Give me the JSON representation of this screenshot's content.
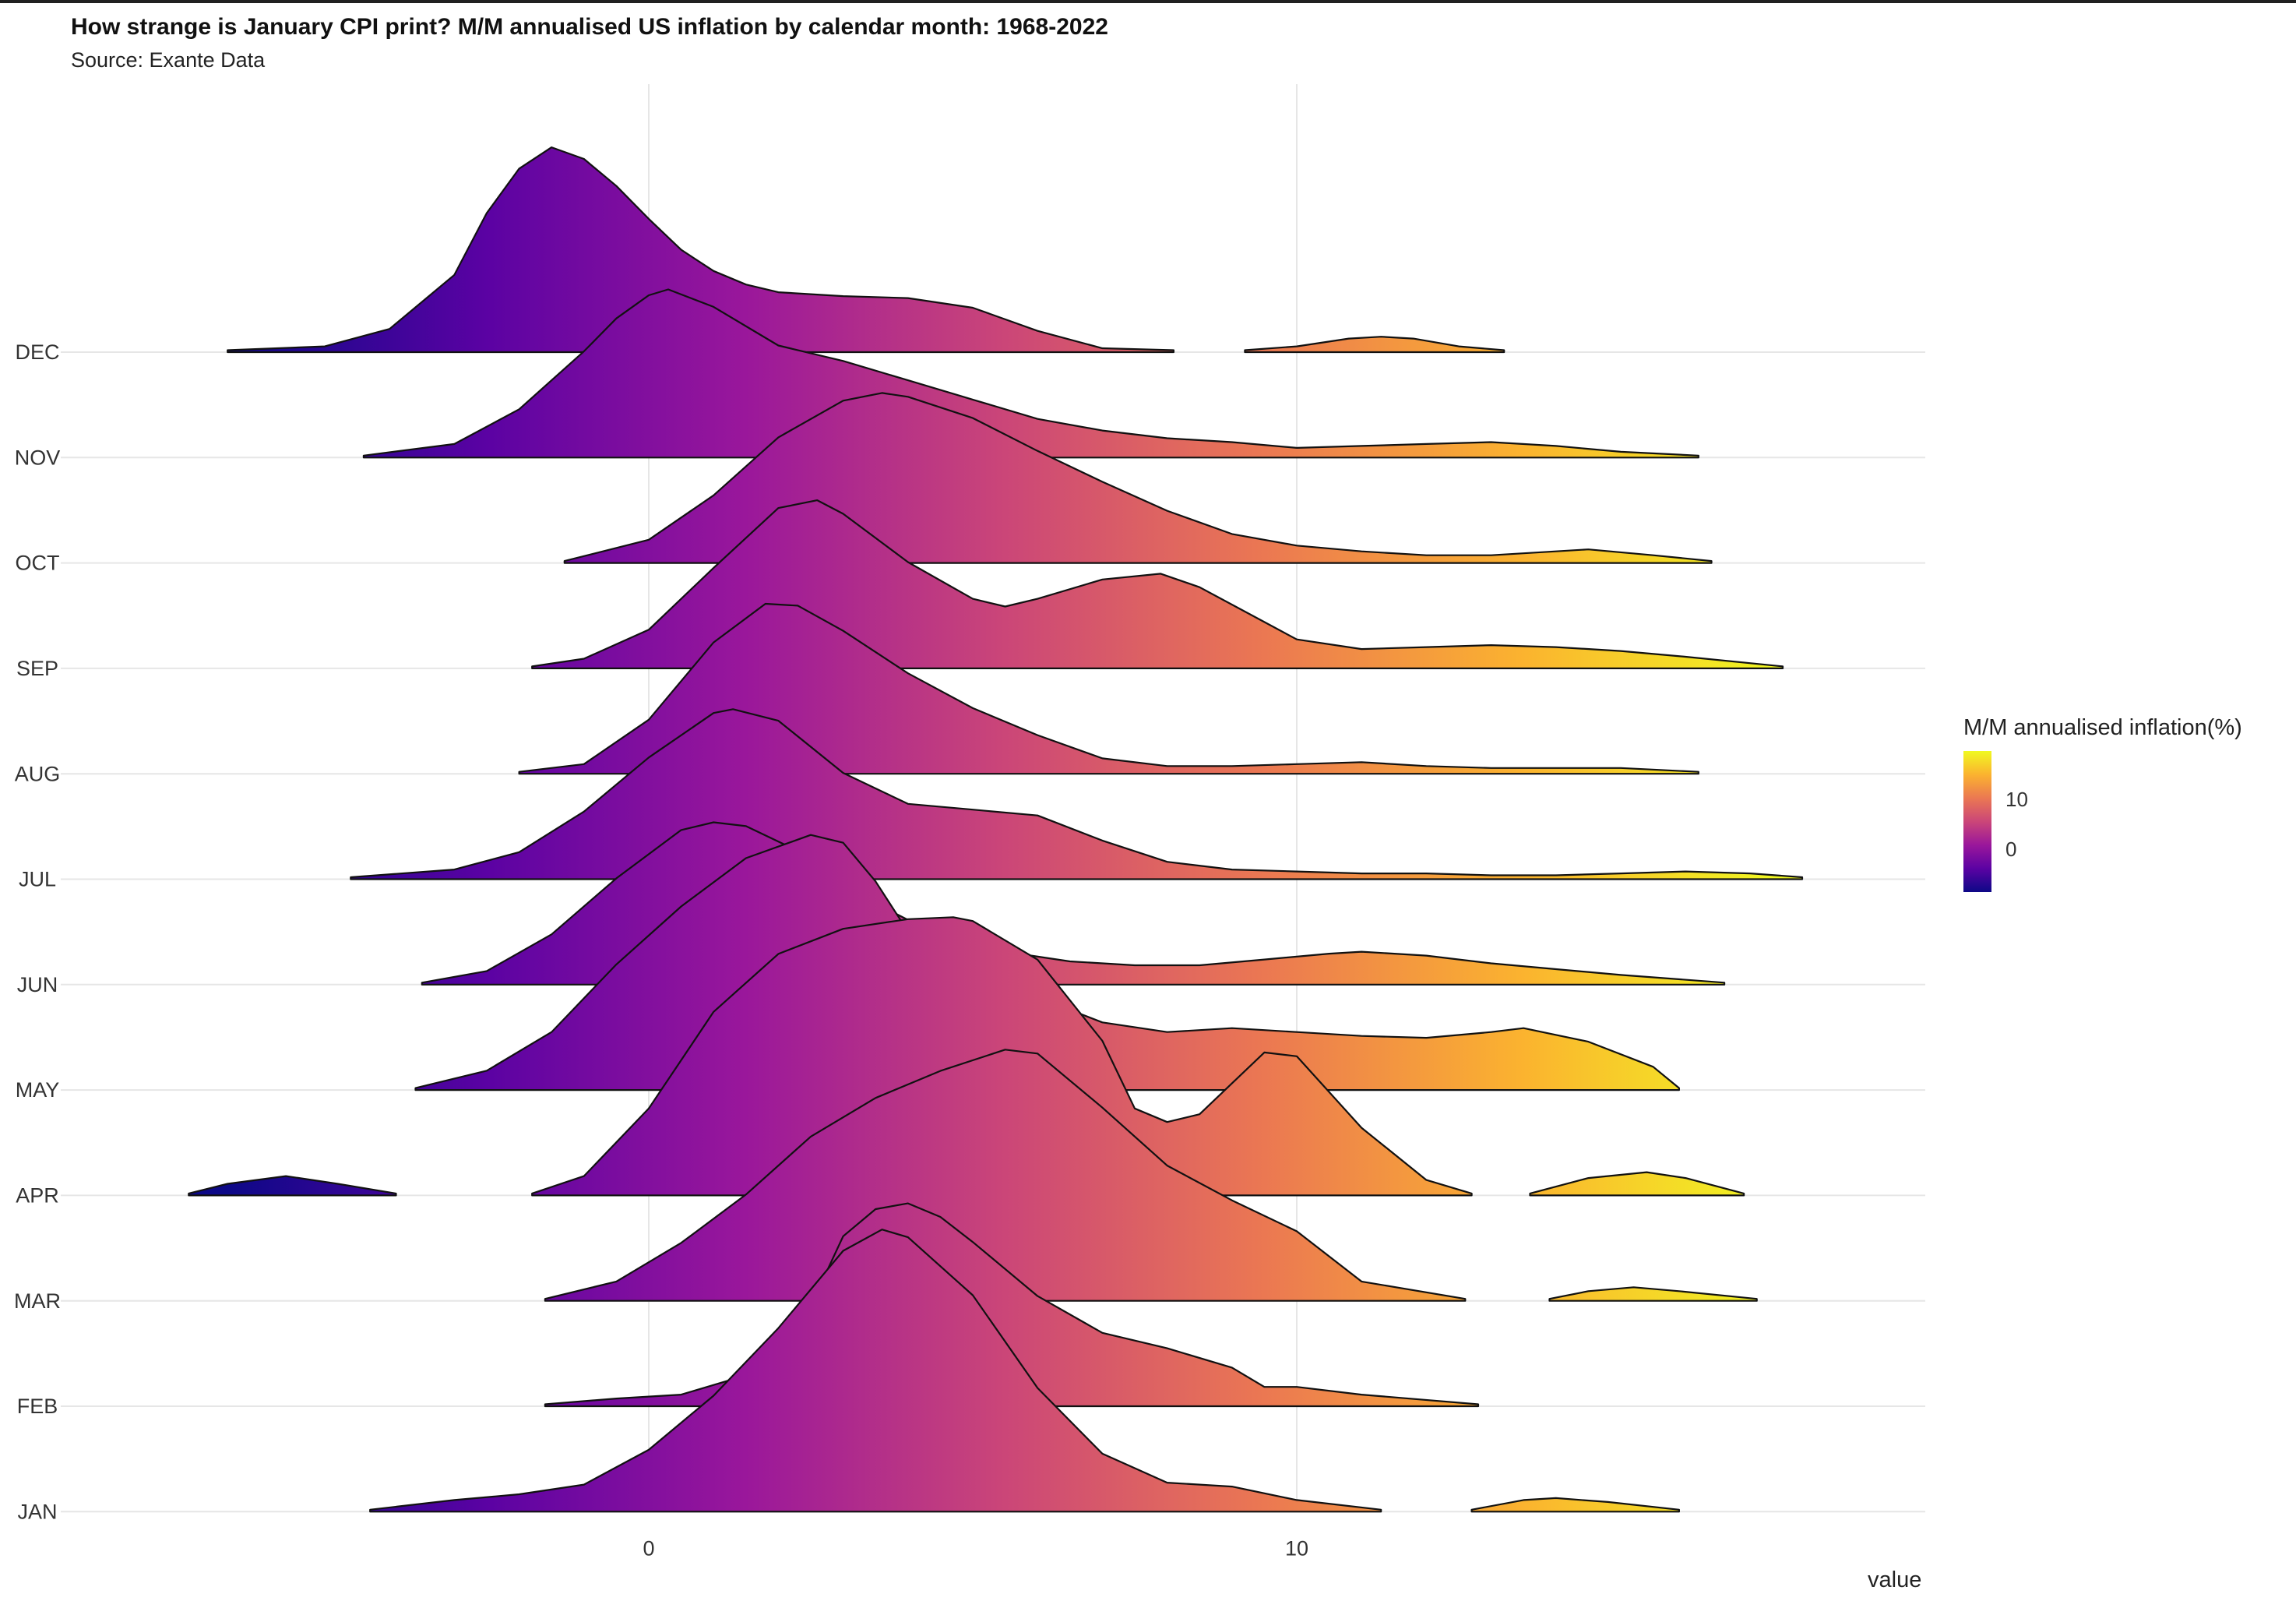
{
  "chart_data": {
    "type": "ridgeline",
    "title": "How strange is January CPI print? M/M annualised US inflation by calendar month: 1968-2022",
    "subtitle": "Source: Exante Data",
    "xlabel": "value",
    "ylabel": "",
    "xlim": [
      -9.5,
      19.7
    ],
    "x_ticks": [
      0,
      10
    ],
    "x_tick_labels": [
      "0",
      "10"
    ],
    "grid": "on",
    "legend": {
      "title": "M/M annualised inflation(%)",
      "placement": "right",
      "ticks": [
        0,
        10
      ],
      "tick_labels": [
        "0",
        "10"
      ],
      "colormap": [
        "#0d0887",
        "#5b02a3",
        "#9a179b",
        "#cb4678",
        "#eb7852",
        "#fbb32f",
        "#f0f921"
      ],
      "range": [
        -6.5,
        17.5
      ]
    },
    "categories": [
      "DEC",
      "NOV",
      "OCT",
      "SEP",
      "AUG",
      "JUL",
      "JUN",
      "MAY",
      "APR",
      "MAR",
      "FEB",
      "JAN"
    ],
    "series": [
      {
        "name": "DEC",
        "points": [
          [
            -6.5,
            0.01
          ],
          [
            -5,
            0.03
          ],
          [
            -4,
            0.12
          ],
          [
            -3,
            0.4
          ],
          [
            -2.5,
            0.72
          ],
          [
            -2,
            0.95
          ],
          [
            -1.5,
            1.06
          ],
          [
            -1,
            1.0
          ],
          [
            -0.5,
            0.86
          ],
          [
            0,
            0.69
          ],
          [
            0.5,
            0.53
          ],
          [
            1,
            0.42
          ],
          [
            1.5,
            0.35
          ],
          [
            2,
            0.31
          ],
          [
            3,
            0.29
          ],
          [
            4,
            0.28
          ],
          [
            5,
            0.23
          ],
          [
            6,
            0.11
          ],
          [
            7,
            0.02
          ],
          [
            8.1,
            0.01
          ]
        ],
        "extra": [
          [
            [
              9.2,
              0.01
            ],
            [
              10,
              0.03
            ],
            [
              10.8,
              0.07
            ],
            [
              11.3,
              0.08
            ],
            [
              11.8,
              0.07
            ],
            [
              12.5,
              0.03
            ],
            [
              13.2,
              0.01
            ]
          ]
        ]
      },
      {
        "name": "NOV",
        "points": [
          [
            -4.4,
            0.01
          ],
          [
            -3,
            0.07
          ],
          [
            -2,
            0.25
          ],
          [
            -1,
            0.55
          ],
          [
            -0.5,
            0.72
          ],
          [
            0,
            0.84
          ],
          [
            0.3,
            0.87
          ],
          [
            1,
            0.78
          ],
          [
            2,
            0.58
          ],
          [
            3,
            0.5
          ],
          [
            4,
            0.4
          ],
          [
            5,
            0.3
          ],
          [
            6,
            0.2
          ],
          [
            7,
            0.14
          ],
          [
            8,
            0.1
          ],
          [
            9,
            0.08
          ],
          [
            10,
            0.05
          ],
          [
            11,
            0.06
          ],
          [
            12,
            0.07
          ],
          [
            13,
            0.08
          ],
          [
            14,
            0.06
          ],
          [
            15,
            0.03
          ],
          [
            16.2,
            0.01
          ]
        ]
      },
      {
        "name": "OCT",
        "points": [
          [
            -1.3,
            0.01
          ],
          [
            0,
            0.12
          ],
          [
            1,
            0.35
          ],
          [
            2,
            0.65
          ],
          [
            3,
            0.84
          ],
          [
            3.6,
            0.88
          ],
          [
            4,
            0.86
          ],
          [
            5,
            0.75
          ],
          [
            6,
            0.58
          ],
          [
            7,
            0.42
          ],
          [
            8,
            0.27
          ],
          [
            9,
            0.15
          ],
          [
            10,
            0.09
          ],
          [
            11,
            0.06
          ],
          [
            12,
            0.04
          ],
          [
            13,
            0.04
          ],
          [
            14,
            0.06
          ],
          [
            14.5,
            0.07
          ],
          [
            15.5,
            0.04
          ],
          [
            16.4,
            0.01
          ]
        ]
      },
      {
        "name": "SEP",
        "points": [
          [
            -1.8,
            0.01
          ],
          [
            -1,
            0.05
          ],
          [
            0,
            0.2
          ],
          [
            1,
            0.52
          ],
          [
            2,
            0.83
          ],
          [
            2.6,
            0.87
          ],
          [
            3,
            0.8
          ],
          [
            4,
            0.55
          ],
          [
            5,
            0.36
          ],
          [
            5.5,
            0.32
          ],
          [
            6,
            0.36
          ],
          [
            7,
            0.46
          ],
          [
            7.9,
            0.49
          ],
          [
            8.5,
            0.42
          ],
          [
            9.5,
            0.24
          ],
          [
            10,
            0.15
          ],
          [
            11,
            0.1
          ],
          [
            12,
            0.11
          ],
          [
            13,
            0.12
          ],
          [
            14,
            0.11
          ],
          [
            15,
            0.09
          ],
          [
            16,
            0.06
          ],
          [
            17.5,
            0.01
          ]
        ]
      },
      {
        "name": "AUG",
        "points": [
          [
            -2,
            0.01
          ],
          [
            -1,
            0.05
          ],
          [
            0,
            0.28
          ],
          [
            1,
            0.68
          ],
          [
            1.8,
            0.88
          ],
          [
            2.3,
            0.87
          ],
          [
            3,
            0.74
          ],
          [
            4,
            0.52
          ],
          [
            5,
            0.34
          ],
          [
            6,
            0.2
          ],
          [
            7,
            0.08
          ],
          [
            8,
            0.04
          ],
          [
            9,
            0.04
          ],
          [
            10,
            0.05
          ],
          [
            11,
            0.06
          ],
          [
            12,
            0.04
          ],
          [
            13,
            0.03
          ],
          [
            14,
            0.03
          ],
          [
            15,
            0.03
          ],
          [
            16.2,
            0.01
          ]
        ]
      },
      {
        "name": "JUL",
        "points": [
          [
            -4.6,
            0.01
          ],
          [
            -3,
            0.05
          ],
          [
            -2,
            0.14
          ],
          [
            -1,
            0.35
          ],
          [
            0,
            0.63
          ],
          [
            1,
            0.86
          ],
          [
            1.3,
            0.88
          ],
          [
            2,
            0.82
          ],
          [
            3,
            0.55
          ],
          [
            4,
            0.39
          ],
          [
            5,
            0.36
          ],
          [
            6,
            0.33
          ],
          [
            7,
            0.2
          ],
          [
            8,
            0.09
          ],
          [
            9,
            0.05
          ],
          [
            10,
            0.04
          ],
          [
            11,
            0.03
          ],
          [
            12,
            0.03
          ],
          [
            13,
            0.02
          ],
          [
            14,
            0.02
          ],
          [
            15,
            0.03
          ],
          [
            16,
            0.04
          ],
          [
            17,
            0.03
          ],
          [
            17.8,
            0.01
          ]
        ]
      },
      {
        "name": "JUN",
        "points": [
          [
            -3.5,
            0.01
          ],
          [
            -2.5,
            0.07
          ],
          [
            -1.5,
            0.26
          ],
          [
            -0.5,
            0.55
          ],
          [
            0.5,
            0.8
          ],
          [
            1,
            0.84
          ],
          [
            1.5,
            0.82
          ],
          [
            2.5,
            0.66
          ],
          [
            3.5,
            0.42
          ],
          [
            4.5,
            0.25
          ],
          [
            5.5,
            0.17
          ],
          [
            6.5,
            0.12
          ],
          [
            7.5,
            0.1
          ],
          [
            8.5,
            0.1
          ],
          [
            9.5,
            0.13
          ],
          [
            10.5,
            0.16
          ],
          [
            11,
            0.17
          ],
          [
            12,
            0.15
          ],
          [
            13,
            0.11
          ],
          [
            14,
            0.08
          ],
          [
            15,
            0.05
          ],
          [
            16.6,
            0.01
          ]
        ]
      },
      {
        "name": "MAY",
        "points": [
          [
            -3.6,
            0.01
          ],
          [
            -2.5,
            0.1
          ],
          [
            -1.5,
            0.3
          ],
          [
            -0.5,
            0.65
          ],
          [
            0.5,
            0.95
          ],
          [
            1.5,
            1.2
          ],
          [
            2.5,
            1.32
          ],
          [
            3,
            1.28
          ],
          [
            3.5,
            1.08
          ],
          [
            4,
            0.82
          ],
          [
            4.5,
            0.67
          ],
          [
            5,
            0.62
          ],
          [
            6,
            0.48
          ],
          [
            7,
            0.35
          ],
          [
            8,
            0.3
          ],
          [
            9,
            0.32
          ],
          [
            10,
            0.3
          ],
          [
            11,
            0.28
          ],
          [
            12,
            0.27
          ],
          [
            13,
            0.3
          ],
          [
            13.5,
            0.32
          ],
          [
            14.5,
            0.25
          ],
          [
            15.5,
            0.12
          ],
          [
            15.9,
            0.01
          ]
        ]
      },
      {
        "name": "APR",
        "points": [
          [
            -1.8,
            0.01
          ],
          [
            -1,
            0.1
          ],
          [
            0,
            0.45
          ],
          [
            1,
            0.95
          ],
          [
            2,
            1.25
          ],
          [
            3,
            1.38
          ],
          [
            4,
            1.43
          ],
          [
            4.7,
            1.44
          ],
          [
            5,
            1.42
          ],
          [
            6,
            1.22
          ],
          [
            7,
            0.8
          ],
          [
            7.5,
            0.45
          ],
          [
            8,
            0.38
          ],
          [
            8.5,
            0.42
          ],
          [
            9.5,
            0.74
          ],
          [
            10,
            0.72
          ],
          [
            11,
            0.35
          ],
          [
            12,
            0.08
          ],
          [
            12.7,
            0.01
          ]
        ],
        "extra": [
          [
            [
              -7.1,
              0.01
            ],
            [
              -6.5,
              0.06
            ],
            [
              -5.6,
              0.1
            ],
            [
              -4.8,
              0.06
            ],
            [
              -3.9,
              0.01
            ]
          ],
          [
            [
              13.6,
              0.01
            ],
            [
              14.5,
              0.09
            ],
            [
              15.4,
              0.12
            ],
            [
              16,
              0.09
            ],
            [
              16.9,
              0.01
            ]
          ]
        ]
      },
      {
        "name": "MAR",
        "points": [
          [
            -1.6,
            0.01
          ],
          [
            -0.5,
            0.1
          ],
          [
            0.5,
            0.3
          ],
          [
            1.5,
            0.55
          ],
          [
            2.5,
            0.85
          ],
          [
            3.5,
            1.05
          ],
          [
            4.5,
            1.19
          ],
          [
            5.5,
            1.3
          ],
          [
            6,
            1.28
          ],
          [
            7,
            1.0
          ],
          [
            8,
            0.7
          ],
          [
            9,
            0.52
          ],
          [
            10,
            0.36
          ],
          [
            11,
            0.1
          ],
          [
            12.6,
            0.01
          ]
        ],
        "extra": [
          [
            [
              13.9,
              0.01
            ],
            [
              14.5,
              0.05
            ],
            [
              15.2,
              0.07
            ],
            [
              15.9,
              0.05
            ],
            [
              17.1,
              0.01
            ]
          ]
        ]
      },
      {
        "name": "FEB",
        "points": [
          [
            -1.6,
            0.01
          ],
          [
            -0.5,
            0.04
          ],
          [
            0.5,
            0.06
          ],
          [
            1.5,
            0.16
          ],
          [
            2,
            0.3
          ],
          [
            2.5,
            0.52
          ],
          [
            3,
            0.88
          ],
          [
            3.5,
            1.02
          ],
          [
            4,
            1.05
          ],
          [
            4.5,
            0.98
          ],
          [
            5,
            0.85
          ],
          [
            6,
            0.57
          ],
          [
            7,
            0.38
          ],
          [
            8,
            0.3
          ],
          [
            9,
            0.2
          ],
          [
            9.5,
            0.1
          ],
          [
            10,
            0.1
          ],
          [
            11,
            0.06
          ],
          [
            12.8,
            0.01
          ]
        ]
      },
      {
        "name": "JAN",
        "points": [
          [
            -4.3,
            0.01
          ],
          [
            -3,
            0.06
          ],
          [
            -2,
            0.09
          ],
          [
            -1,
            0.14
          ],
          [
            0,
            0.32
          ],
          [
            1,
            0.6
          ],
          [
            2,
            0.95
          ],
          [
            3,
            1.35
          ],
          [
            3.6,
            1.46
          ],
          [
            4,
            1.42
          ],
          [
            5,
            1.12
          ],
          [
            6,
            0.64
          ],
          [
            7,
            0.3
          ],
          [
            8,
            0.15
          ],
          [
            9,
            0.13
          ],
          [
            10,
            0.06
          ],
          [
            11.3,
            0.01
          ]
        ],
        "extra": [
          [
            [
              12.7,
              0.01
            ],
            [
              13.5,
              0.06
            ],
            [
              14,
              0.07
            ],
            [
              14.8,
              0.05
            ],
            [
              15.9,
              0.01
            ]
          ]
        ]
      }
    ]
  }
}
